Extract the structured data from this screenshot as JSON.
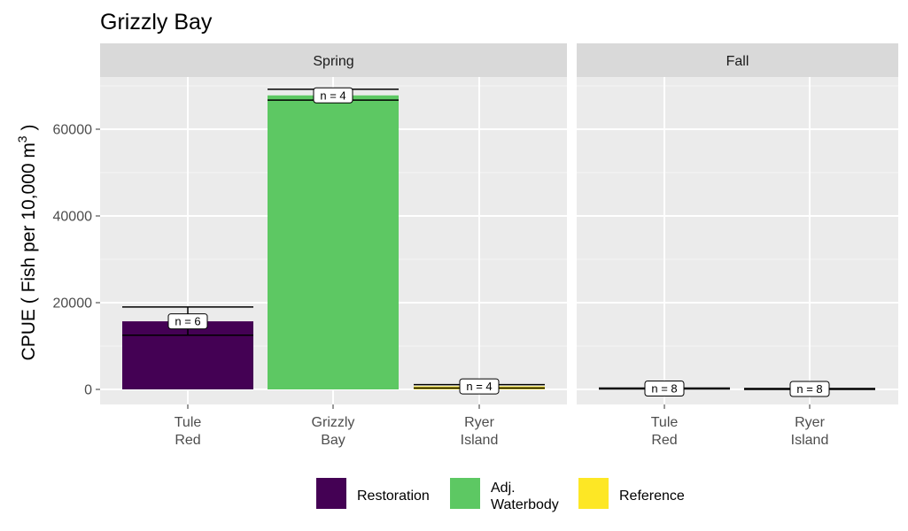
{
  "chart_data": {
    "type": "bar",
    "title": "Grizzly Bay",
    "ylabel": "CPUE ( Fish per 10,000 m",
    "ylabel_superscript": "3",
    "ylabel_close": ")",
    "ylim": [
      0,
      70000
    ],
    "yticks": [
      0,
      20000,
      40000,
      60000
    ],
    "grid": true,
    "legend_position": "bottom",
    "legend": [
      {
        "name": "Restoration",
        "lines": [
          "Restoration"
        ],
        "color": "#440154"
      },
      {
        "name": "Adj. Waterbody",
        "lines": [
          "Adj.",
          "Waterbody"
        ],
        "color": "#5DC863"
      },
      {
        "name": "Reference",
        "lines": [
          "Reference"
        ],
        "color": "#FDE725"
      }
    ],
    "panels": [
      {
        "label": "Spring",
        "bars": [
          {
            "category": [
              "Tule",
              "Red"
            ],
            "group": "Restoration",
            "value": 15700,
            "err_low": 12500,
            "err_high": 19000,
            "n_label": "n =  6"
          },
          {
            "category": [
              "Grizzly",
              "Bay"
            ],
            "group": "Adj. Waterbody",
            "value": 67800,
            "err_low": 66700,
            "err_high": 69200,
            "n_label": "n =  4"
          },
          {
            "category": [
              "Ryer",
              "Island"
            ],
            "group": "Reference",
            "value": 700,
            "err_low": 300,
            "err_high": 1100,
            "n_label": "n =  4"
          }
        ]
      },
      {
        "label": "Fall",
        "bars": [
          {
            "category": [
              "Tule",
              "Red"
            ],
            "group": "Restoration",
            "value": 200,
            "err_low": 100,
            "err_high": 300,
            "n_label": "n =  8"
          },
          {
            "category": [
              "Ryer",
              "Island"
            ],
            "group": "Reference",
            "value": 100,
            "err_low": 0,
            "err_high": 200,
            "n_label": "n =  8"
          }
        ]
      }
    ]
  }
}
